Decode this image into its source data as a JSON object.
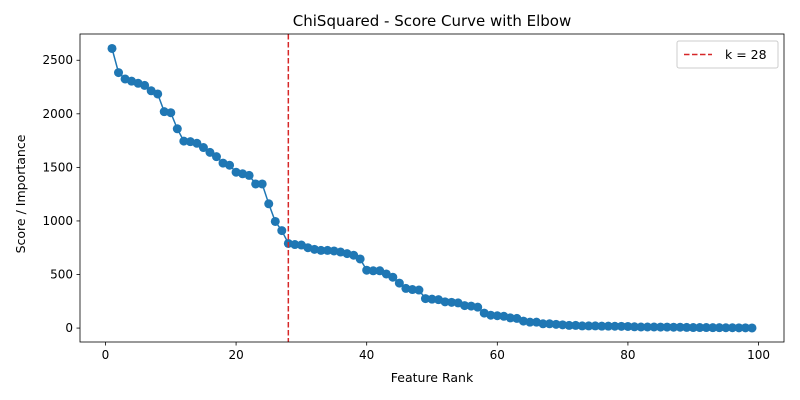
{
  "chart_data": {
    "type": "line",
    "title": "ChiSquared - Score Curve with Elbow",
    "xlabel": "Feature Rank",
    "ylabel": "Score / Importance",
    "xlim": [
      -3.9,
      103.9
    ],
    "ylim": [
      -130,
      2745
    ],
    "xticks": [
      "0",
      "20",
      "40",
      "60",
      "80",
      "100"
    ],
    "xtick_values": [
      0,
      20,
      40,
      60,
      80,
      100
    ],
    "yticks": [
      "0",
      "500",
      "1000",
      "1500",
      "2000",
      "2500"
    ],
    "ytick_values": [
      0,
      500,
      1000,
      1500,
      2000,
      2500
    ],
    "grid": false,
    "legend_position": "top-right",
    "series": [
      {
        "color": "#1f77b4",
        "marker": "circle",
        "x": [
          1,
          2,
          3,
          4,
          5,
          6,
          7,
          8,
          9,
          10,
          11,
          12,
          13,
          14,
          15,
          16,
          17,
          18,
          19,
          20,
          21,
          22,
          23,
          24,
          25,
          26,
          27,
          28,
          29,
          30,
          31,
          32,
          33,
          34,
          35,
          36,
          37,
          38,
          39,
          40,
          41,
          42,
          43,
          44,
          45,
          46,
          47,
          48,
          49,
          50,
          51,
          52,
          53,
          54,
          55,
          56,
          57,
          58,
          59,
          60,
          61,
          62,
          63,
          64,
          65,
          66,
          67,
          68,
          69,
          70,
          71,
          72,
          73,
          74,
          75,
          76,
          77,
          78,
          79,
          80,
          81,
          82,
          83,
          84,
          85,
          86,
          87,
          88,
          89,
          90,
          91,
          92,
          93,
          94,
          95,
          96,
          97,
          98,
          99
        ],
        "y": [
          2610,
          2385,
          2325,
          2305,
          2285,
          2265,
          2215,
          2185,
          2020,
          2010,
          1860,
          1745,
          1740,
          1725,
          1685,
          1640,
          1600,
          1540,
          1520,
          1455,
          1440,
          1425,
          1345,
          1345,
          1160,
          995,
          910,
          790,
          780,
          775,
          750,
          735,
          725,
          725,
          720,
          710,
          695,
          680,
          645,
          540,
          535,
          535,
          505,
          475,
          420,
          370,
          360,
          355,
          275,
          270,
          265,
          245,
          240,
          235,
          210,
          205,
          195,
          140,
          120,
          115,
          110,
          95,
          90,
          65,
          55,
          55,
          40,
          40,
          35,
          30,
          25,
          25,
          20,
          20,
          20,
          18,
          18,
          17,
          16,
          15,
          12,
          10,
          10,
          10,
          9,
          9,
          8,
          8,
          6,
          5,
          5,
          5,
          4,
          4,
          3,
          3,
          2,
          2,
          1
        ]
      }
    ],
    "annotations": [
      {
        "type": "vline",
        "x": 28,
        "color": "#d62728",
        "style": "dashed",
        "label": "k = 28"
      }
    ]
  }
}
